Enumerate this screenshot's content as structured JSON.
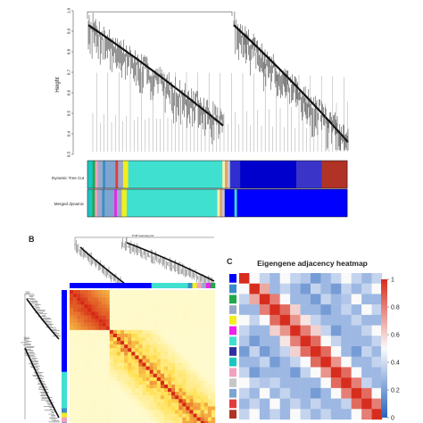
{
  "panels": {
    "b": "B",
    "c": "C"
  },
  "chart_data": [
    {
      "type": "dendrogram",
      "panel": "A",
      "ylabel": "Height",
      "yticks": [
        0.3,
        0.4,
        0.5,
        0.6,
        0.7,
        0.8,
        0.9,
        1.0
      ],
      "ylim": [
        0.3,
        1.0
      ],
      "color_rows": [
        {
          "label": "Dynamic Tree Cut",
          "segments": [
            {
              "color": "#19c6c2",
              "w": 2
            },
            {
              "color": "#22a84a",
              "w": 1
            },
            {
              "color": "#f4a0c0",
              "w": 1
            },
            {
              "color": "#9aa9c7",
              "w": 2
            },
            {
              "color": "#3c8cc8",
              "w": 1
            },
            {
              "color": "#7da5cf",
              "w": 4
            },
            {
              "color": "#e33b3b",
              "w": 1
            },
            {
              "color": "#9aa9c7",
              "w": 2
            },
            {
              "color": "#f2ee1f",
              "w": 2
            },
            {
              "color": "#40e0d0",
              "w": 37
            },
            {
              "color": "#f5f0b0",
              "w": 1
            },
            {
              "color": "#e0a070",
              "w": 1
            },
            {
              "color": "#c7c7c7",
              "w": 1
            },
            {
              "color": "#2f2fcf",
              "w": 4
            },
            {
              "color": "#0000cd",
              "w": 22
            },
            {
              "color": "#3a35c8",
              "w": 10
            },
            {
              "color": "#b03326",
              "w": 10
            }
          ]
        },
        {
          "label": "Merged dynamic",
          "segments": [
            {
              "color": "#19c6c2",
              "w": 2
            },
            {
              "color": "#22a84a",
              "w": 1
            },
            {
              "color": "#f4a0c0",
              "w": 1
            },
            {
              "color": "#9aa9c7",
              "w": 2
            },
            {
              "color": "#3c8cc8",
              "w": 1
            },
            {
              "color": "#7da5cf",
              "w": 4
            },
            {
              "color": "#ee22ee",
              "w": 1
            },
            {
              "color": "#9aa9c7",
              "w": 2
            },
            {
              "color": "#f2ee1f",
              "w": 2
            },
            {
              "color": "#40e0d0",
              "w": 37
            },
            {
              "color": "#f5f0b0",
              "w": 1
            },
            {
              "color": "#e0a070",
              "w": 1
            },
            {
              "color": "#c7c7c7",
              "w": 1
            },
            {
              "color": "#0000ff",
              "w": 4
            },
            {
              "color": "#40e0d0",
              "w": 1
            },
            {
              "color": "#0000ff",
              "w": 45
            }
          ]
        }
      ]
    },
    {
      "type": "heatmap",
      "panel": "B",
      "title": "TOM heatmap plot",
      "module_bar": [
        "#22a84a",
        "#ee22ee",
        "#9aa9c7",
        "#f4a0c0",
        "#f2ee1f",
        "#3c8cc8",
        "#40e0d0",
        "#0000ff"
      ],
      "blocks": [
        {
          "module": "#0000ff",
          "fraction": 0.28,
          "intensity": 0.95
        },
        {
          "module": "#40e0d0",
          "fraction": 0.72,
          "intensity": 0.55
        }
      ]
    },
    {
      "type": "heatmap",
      "panel": "C",
      "title": "Eigengene adjacency heatmap",
      "modules": [
        "#0000ff",
        "#3c8cc8",
        "#22a84a",
        "#9aa9c7",
        "#f2ee1f",
        "#ee22ee",
        "#40e0d0",
        "#2f2f9f",
        "#19c6c2",
        "#f4a0c0",
        "#c7c7c7",
        "#7da5cf",
        "#e33b3b",
        "#b03326"
      ],
      "matrix": [
        [
          1.0,
          0.5,
          0.4,
          0.3,
          0.5,
          0.4,
          0.35,
          0.2,
          0.3,
          0.4,
          0.5,
          0.4,
          0.3,
          0.4
        ],
        [
          0.5,
          1.0,
          0.7,
          0.3,
          0.4,
          0.3,
          0.2,
          0.4,
          0.3,
          0.2,
          0.4,
          0.3,
          0.4,
          0.5
        ],
        [
          0.4,
          0.7,
          1.0,
          0.8,
          0.5,
          0.3,
          0.3,
          0.2,
          0.4,
          0.3,
          0.35,
          0.5,
          0.3,
          0.3
        ],
        [
          0.3,
          0.3,
          0.8,
          1.0,
          0.85,
          0.6,
          0.3,
          0.3,
          0.2,
          0.3,
          0.4,
          0.3,
          0.5,
          0.4
        ],
        [
          0.5,
          0.4,
          0.5,
          0.85,
          1.0,
          0.75,
          0.55,
          0.4,
          0.3,
          0.3,
          0.3,
          0.4,
          0.3,
          0.3
        ],
        [
          0.4,
          0.3,
          0.3,
          0.6,
          0.75,
          1.0,
          0.8,
          0.6,
          0.4,
          0.2,
          0.3,
          0.3,
          0.4,
          0.5
        ],
        [
          0.35,
          0.2,
          0.3,
          0.3,
          0.55,
          0.8,
          1.0,
          0.85,
          0.5,
          0.4,
          0.3,
          0.3,
          0.3,
          0.4
        ],
        [
          0.2,
          0.4,
          0.2,
          0.3,
          0.4,
          0.6,
          0.85,
          1.0,
          0.85,
          0.5,
          0.3,
          0.2,
          0.4,
          0.3
        ],
        [
          0.3,
          0.3,
          0.4,
          0.2,
          0.3,
          0.4,
          0.5,
          0.85,
          1.0,
          0.75,
          0.5,
          0.3,
          0.3,
          0.4
        ],
        [
          0.4,
          0.2,
          0.3,
          0.3,
          0.3,
          0.2,
          0.4,
          0.5,
          0.75,
          1.0,
          0.85,
          0.5,
          0.3,
          0.3
        ],
        [
          0.5,
          0.4,
          0.35,
          0.4,
          0.3,
          0.3,
          0.3,
          0.3,
          0.5,
          0.85,
          1.0,
          0.8,
          0.4,
          0.3
        ],
        [
          0.4,
          0.3,
          0.5,
          0.3,
          0.4,
          0.3,
          0.3,
          0.2,
          0.3,
          0.5,
          0.8,
          1.0,
          0.85,
          0.5
        ],
        [
          0.3,
          0.4,
          0.3,
          0.5,
          0.3,
          0.4,
          0.3,
          0.4,
          0.3,
          0.3,
          0.4,
          0.85,
          1.0,
          0.8
        ],
        [
          0.4,
          0.5,
          0.3,
          0.4,
          0.3,
          0.5,
          0.4,
          0.3,
          0.4,
          0.3,
          0.3,
          0.5,
          0.8,
          1.0
        ]
      ],
      "colorbar": {
        "min": 0,
        "max": 1,
        "ticks": [
          0,
          0.2,
          0.4,
          0.6,
          0.8,
          1
        ]
      }
    }
  ]
}
